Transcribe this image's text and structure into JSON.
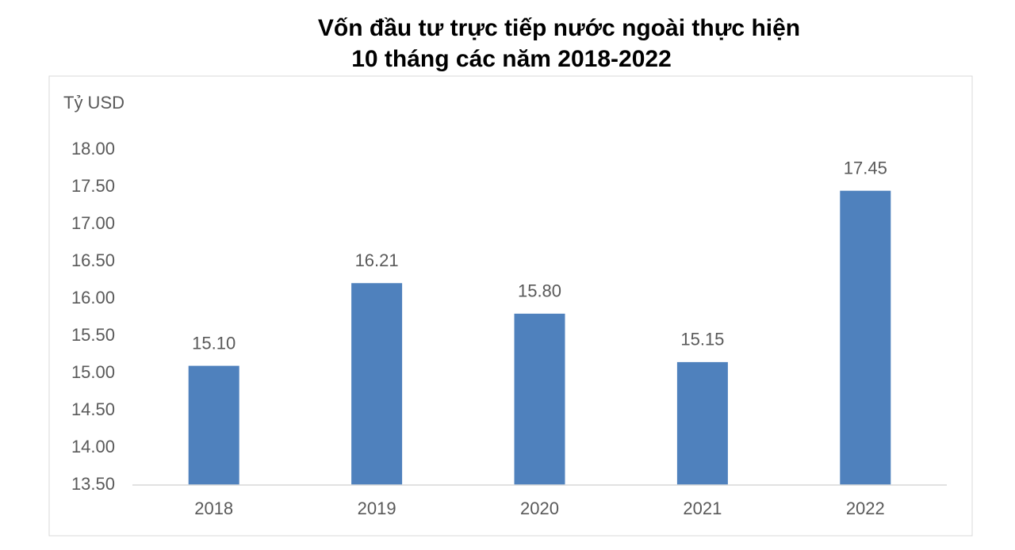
{
  "chart_data": {
    "type": "bar",
    "title": "Vốn đầu tư trực tiếp nước ngoài thực hiện",
    "subtitle": "10 tháng các năm 2018-2022",
    "y_label": "Tỷ USD",
    "categories": [
      "2018",
      "2019",
      "2020",
      "2021",
      "2022"
    ],
    "values": [
      15.1,
      16.21,
      15.8,
      15.15,
      17.45
    ],
    "value_labels": [
      "15.10",
      "16.21",
      "15.80",
      "15.15",
      "17.45"
    ],
    "color": "#4f81bd",
    "ylim": [
      13.5,
      18
    ],
    "yticks": [
      {
        "value": 13.5,
        "label": "13.50"
      },
      {
        "value": 14,
        "label": "14.00"
      },
      {
        "value": 14.5,
        "label": "14.50"
      },
      {
        "value": 15,
        "label": "15.00"
      },
      {
        "value": 15.5,
        "label": "15.50"
      },
      {
        "value": 16,
        "label": "16.00"
      },
      {
        "value": 16.5,
        "label": "16.50"
      },
      {
        "value": 17,
        "label": "17.00"
      },
      {
        "value": 17.5,
        "label": "17.50"
      },
      {
        "value": 18,
        "label": "18.00"
      }
    ],
    "grid": false
  }
}
